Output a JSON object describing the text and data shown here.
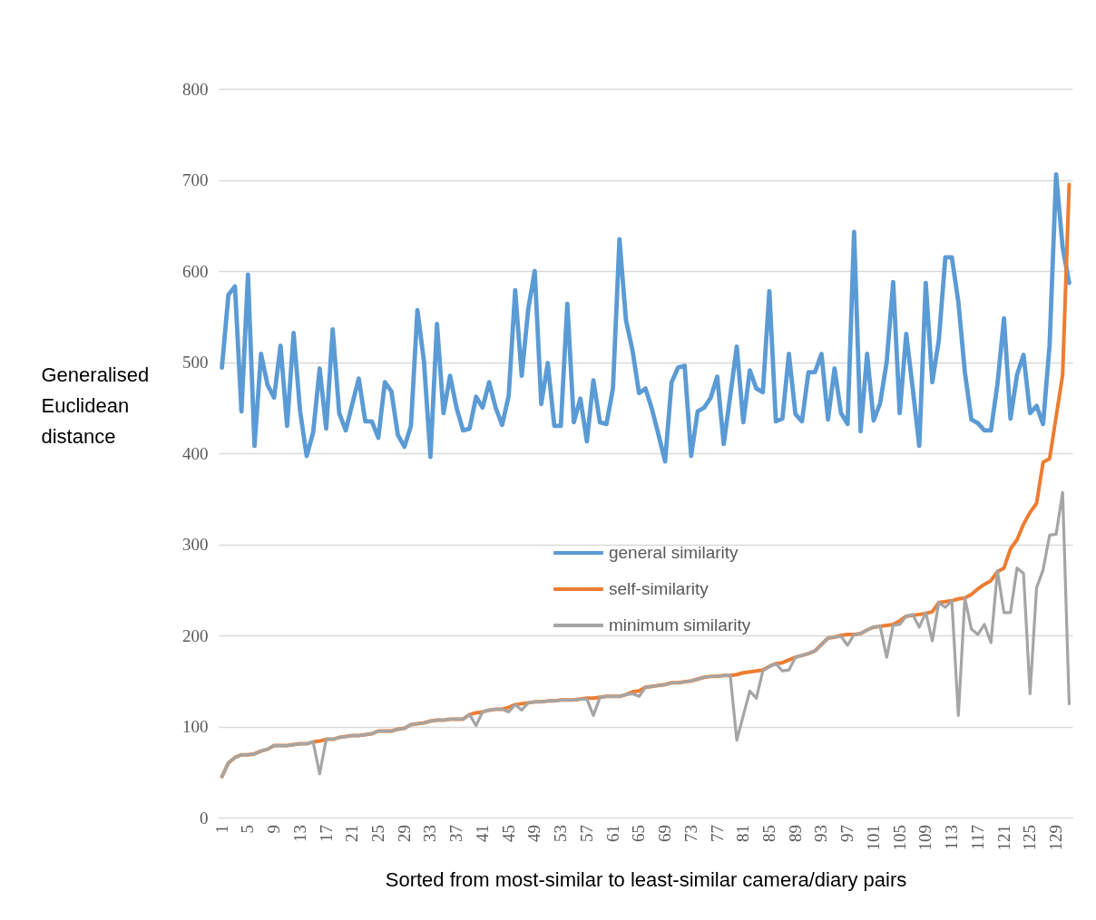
{
  "chart_data": {
    "type": "line",
    "xlabel": "Sorted from most-similar to least-similar camera/diary pairs",
    "ylabel": "Generalised Euclidean distance",
    "x": [
      1,
      2,
      3,
      4,
      5,
      6,
      7,
      8,
      9,
      10,
      11,
      12,
      13,
      14,
      15,
      16,
      17,
      18,
      19,
      20,
      21,
      22,
      23,
      24,
      25,
      26,
      27,
      28,
      29,
      30,
      31,
      32,
      33,
      34,
      35,
      36,
      37,
      38,
      39,
      40,
      41,
      42,
      43,
      44,
      45,
      46,
      47,
      48,
      49,
      50,
      51,
      52,
      53,
      54,
      55,
      56,
      57,
      58,
      59,
      60,
      61,
      62,
      63,
      64,
      65,
      66,
      67,
      68,
      69,
      70,
      71,
      72,
      73,
      74,
      75,
      76,
      77,
      78,
      79,
      80,
      81,
      82,
      83,
      84,
      85,
      86,
      87,
      88,
      89,
      90,
      91,
      92,
      93,
      94,
      95,
      96,
      97,
      98,
      99,
      100,
      101,
      102,
      103,
      104,
      105,
      106,
      107,
      108,
      109,
      110,
      111,
      112,
      113,
      114,
      115,
      116,
      117,
      118,
      119,
      120,
      121,
      122,
      123,
      124,
      125,
      126,
      127,
      128,
      129,
      130,
      131
    ],
    "xlim": [
      0.5,
      131.5
    ],
    "xticks": [
      1,
      5,
      9,
      13,
      17,
      21,
      25,
      29,
      33,
      37,
      41,
      45,
      49,
      53,
      57,
      61,
      65,
      69,
      73,
      77,
      81,
      85,
      89,
      93,
      97,
      101,
      105,
      109,
      113,
      117,
      121,
      125,
      129
    ],
    "ylim": [
      0,
      800
    ],
    "yticks": [
      0,
      100,
      200,
      300,
      400,
      500,
      600,
      700,
      800
    ],
    "grid": "y",
    "legend": "center",
    "marker": "none",
    "line_style": "solid",
    "series": [
      {
        "name": "general similarity",
        "color": "#5b9bd5",
        "values": [
          494,
          574,
          583,
          446,
          596,
          408,
          509,
          475,
          461,
          518,
          430,
          532,
          446,
          397,
          423,
          493,
          427,
          536,
          444,
          425,
          454,
          482,
          435,
          435,
          417,
          478,
          468,
          420,
          407,
          430,
          557,
          501,
          396,
          542,
          444,
          485,
          450,
          425,
          427,
          462,
          450,
          478,
          450,
          431,
          463,
          579,
          485,
          558,
          600,
          454,
          499,
          430,
          430,
          564,
          434,
          460,
          413,
          480,
          434,
          432,
          471,
          635,
          546,
          513,
          466,
          471,
          448,
          420,
          391,
          478,
          494,
          496,
          397,
          446,
          450,
          461,
          484,
          410,
          463,
          517,
          434,
          491,
          471,
          467,
          578,
          435,
          438,
          509,
          443,
          435,
          489,
          489,
          509,
          437,
          493,
          444,
          432,
          643,
          424,
          509,
          436,
          455,
          500,
          588,
          444,
          531,
          471,
          408,
          587,
          478,
          524,
          615,
          615,
          566,
          489,
          437,
          433,
          425,
          425,
          476,
          548,
          438,
          486,
          508,
          444,
          452,
          432,
          519,
          706,
          626,
          587
        ]
      },
      {
        "name": "self-similarity",
        "color": "#ed7d31",
        "values": [
          45,
          60,
          66,
          69,
          69,
          70,
          73,
          75,
          79,
          79,
          79,
          80,
          81,
          81,
          83,
          84,
          86,
          86,
          88,
          89,
          90,
          90,
          91,
          92,
          95,
          95,
          95,
          97,
          98,
          102,
          103,
          104,
          106,
          107,
          107,
          108,
          108,
          108,
          113,
          115,
          116,
          118,
          119,
          119,
          121,
          124,
          125,
          126,
          127,
          127,
          128,
          128,
          129,
          129,
          129,
          130,
          131,
          131,
          132,
          133,
          133,
          133,
          135,
          138,
          139,
          143,
          144,
          145,
          146,
          148,
          148,
          149,
          150,
          152,
          154,
          155,
          155,
          156,
          156,
          157,
          159,
          160,
          161,
          162,
          166,
          169,
          170,
          173,
          176,
          178,
          180,
          183,
          190,
          197,
          198,
          200,
          201,
          201,
          202,
          206,
          209,
          210,
          211,
          212,
          216,
          221,
          222,
          223,
          224,
          226,
          236,
          237,
          238,
          240,
          241,
          245,
          251,
          256,
          260,
          270,
          274,
          295,
          305,
          322,
          335,
          345,
          390,
          394,
          440,
          486,
          695
        ]
      },
      {
        "name": "minimum similarity",
        "color": "#a5a5a5",
        "values": [
          45,
          60,
          66,
          69,
          69,
          70,
          73,
          75,
          79,
          79,
          79,
          80,
          81,
          81,
          83,
          48,
          86,
          86,
          88,
          89,
          90,
          90,
          91,
          92,
          95,
          95,
          95,
          97,
          98,
          102,
          103,
          104,
          106,
          107,
          107,
          108,
          108,
          108,
          113,
          101,
          116,
          118,
          119,
          119,
          116,
          124,
          118,
          126,
          127,
          127,
          128,
          128,
          129,
          129,
          129,
          130,
          130,
          112,
          132,
          133,
          133,
          133,
          135,
          136,
          133,
          143,
          144,
          145,
          146,
          148,
          148,
          149,
          150,
          152,
          154,
          155,
          155,
          156,
          156,
          85,
          112,
          139,
          131,
          161,
          166,
          169,
          161,
          162,
          176,
          178,
          180,
          183,
          190,
          197,
          198,
          199,
          189,
          201,
          202,
          206,
          209,
          210,
          176,
          211,
          212,
          221,
          223,
          209,
          225,
          194,
          236,
          231,
          238,
          112,
          241,
          207,
          201,
          212,
          192,
          271,
          225,
          225,
          274,
          268,
          136,
          252,
          272,
          310,
          311,
          357,
          125
        ]
      }
    ]
  }
}
